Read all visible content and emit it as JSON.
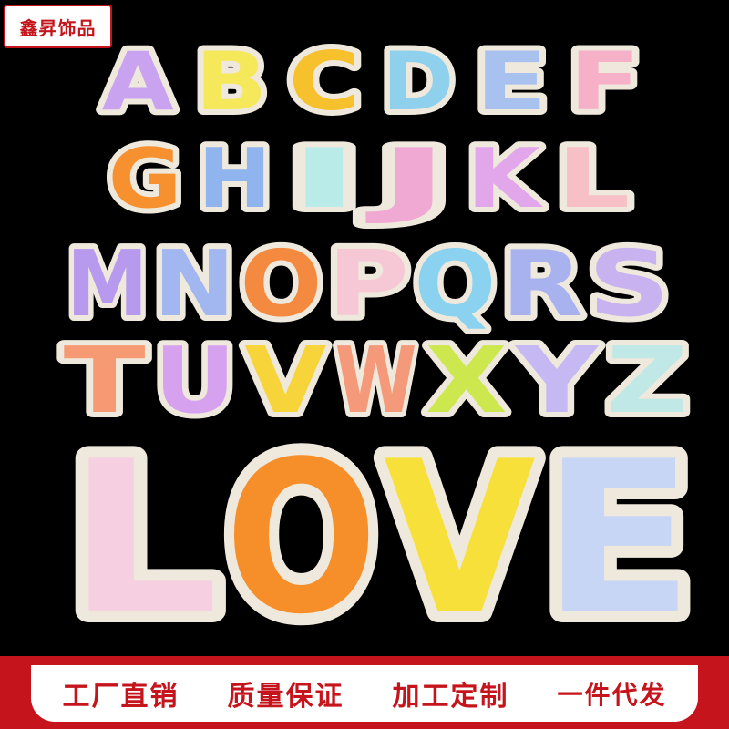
{
  "brand": {
    "name": "鑫昇饰品",
    "color": "#c5141b"
  },
  "patches": {
    "row1": [
      {
        "char": "A",
        "fill": "#c9a3f0",
        "outline": "#efe9dd"
      },
      {
        "char": "B",
        "fill": "#f5e85a",
        "outline": "#efe9dd"
      },
      {
        "char": "C",
        "fill": "#f6c12c",
        "outline": "#efe9dd"
      },
      {
        "char": "D",
        "fill": "#8fd0ec",
        "outline": "#efe9dd"
      },
      {
        "char": "E",
        "fill": "#a8c1ef",
        "outline": "#efe9dd"
      },
      {
        "char": "F",
        "fill": "#f6b0c8",
        "outline": "#efe9dd"
      }
    ],
    "row2": [
      {
        "char": "G",
        "fill": "#f7902e",
        "outline": "#efe9dd"
      },
      {
        "char": "H",
        "fill": "#8fb4ee",
        "outline": "#efe9dd"
      },
      {
        "char": "I",
        "fill": "#b9ece9",
        "outline": "#efe9dd"
      },
      {
        "char": "J",
        "fill": "#f0a9d2",
        "outline": "#efe9dd"
      },
      {
        "char": "K",
        "fill": "#e2a6ea",
        "outline": "#efe9dd"
      },
      {
        "char": "L",
        "fill": "#f7c0c6",
        "outline": "#efe9dd"
      }
    ],
    "row3": [
      {
        "char": "M",
        "fill": "#b79aee",
        "outline": "#efe9dd"
      },
      {
        "char": "N",
        "fill": "#a2b6ef",
        "outline": "#efe9dd"
      },
      {
        "char": "O",
        "fill": "#f48a3f",
        "outline": "#efe9dd"
      },
      {
        "char": "P",
        "fill": "#f6c8d6",
        "outline": "#efe9dd"
      },
      {
        "char": "Q",
        "fill": "#8ad2ef",
        "outline": "#efe9dd"
      },
      {
        "char": "R",
        "fill": "#a8b2ee",
        "outline": "#efe9dd"
      },
      {
        "char": "S",
        "fill": "#c8b3f0",
        "outline": "#efe9dd"
      }
    ],
    "row4": [
      {
        "char": "T",
        "fill": "#f59a72",
        "outline": "#efe9dd"
      },
      {
        "char": "U",
        "fill": "#d6a1ee",
        "outline": "#efe9dd"
      },
      {
        "char": "V",
        "fill": "#f6d43a",
        "outline": "#efe9dd"
      },
      {
        "char": "W",
        "fill": "#f49a7a",
        "outline": "#efe9dd"
      },
      {
        "char": "X",
        "fill": "#cde84e",
        "outline": "#efe9dd"
      },
      {
        "char": "Y",
        "fill": "#c6b8f2",
        "outline": "#efe9dd"
      },
      {
        "char": "Z",
        "fill": "#bfe8e6",
        "outline": "#efe9dd"
      }
    ],
    "love": [
      {
        "char": "L",
        "fill": "#f6cfe0",
        "outline": "#efe9dd"
      },
      {
        "char": "O",
        "fill": "#f68e2a",
        "outline": "#efe9dd"
      },
      {
        "char": "V",
        "fill": "#f8e03a",
        "outline": "#efe9dd"
      },
      {
        "char": "E",
        "fill": "#c7d6f4",
        "outline": "#efe9dd"
      }
    ]
  },
  "footer": {
    "slogans": [
      "工厂直销",
      "质量保证",
      "加工定制",
      "一件代发"
    ],
    "color": "#c5141b"
  }
}
